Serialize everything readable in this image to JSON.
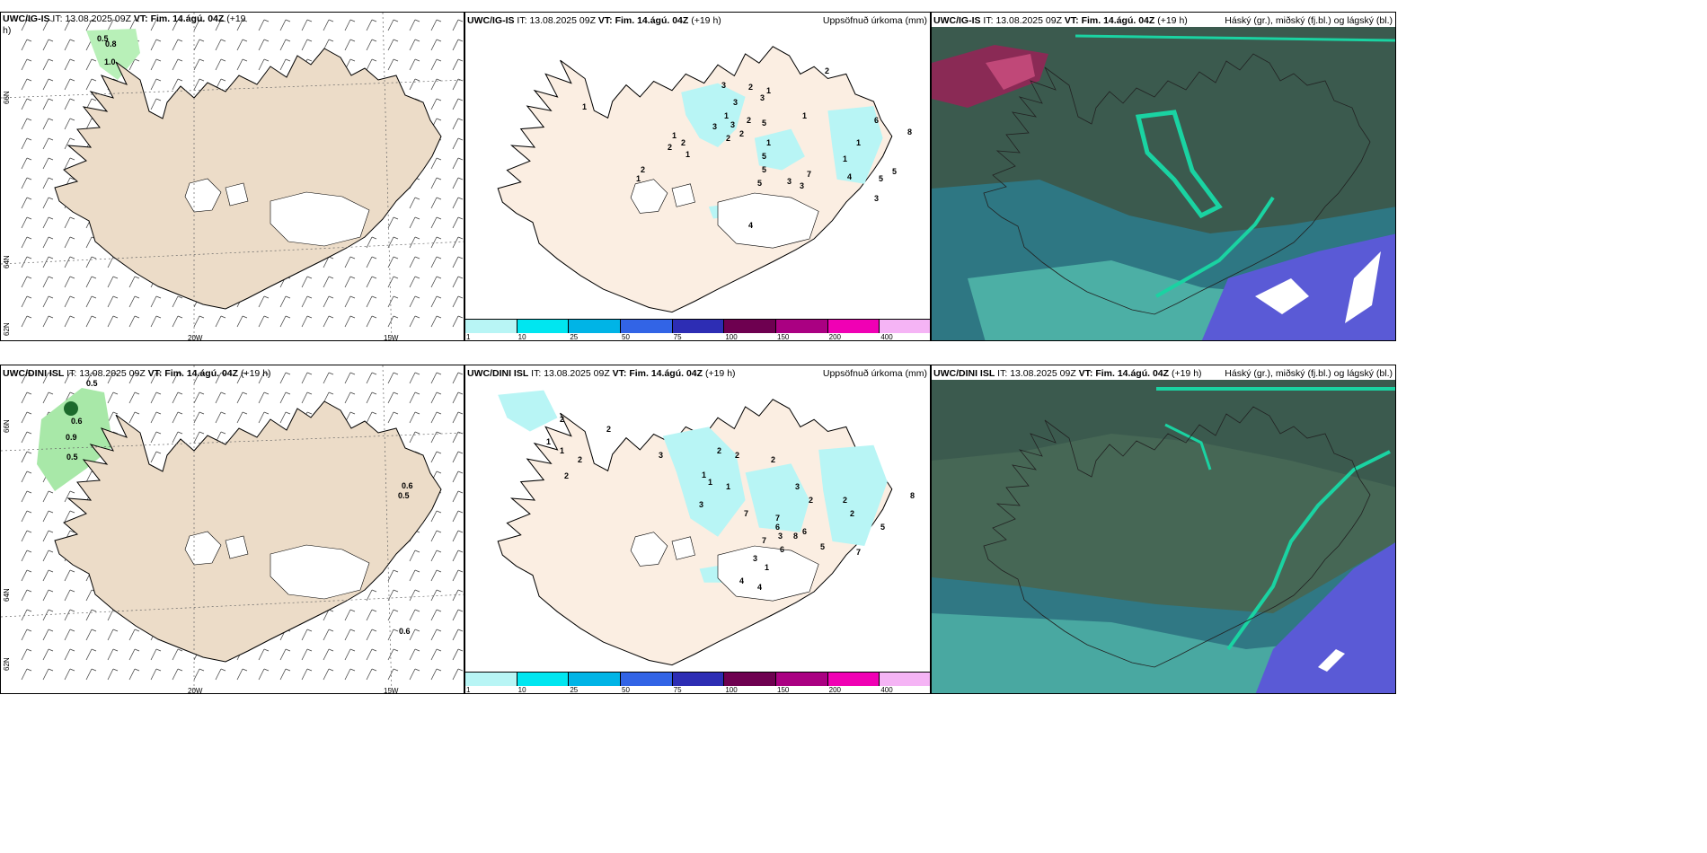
{
  "rows": [
    {
      "id": "top",
      "wind": {
        "model": "UWC/IG-IS",
        "it_label": "IT:",
        "it": "13.08.2025 09Z",
        "vt_label": "VT:",
        "vt": "Fim. 14.ágú. 04Z",
        "lead": "(+19",
        "lead2": "h)"
      },
      "precip": {
        "model": "UWC/IG-IS",
        "it_label": "IT:",
        "it": "13.08.2025 09Z",
        "vt_label": "VT:",
        "vt": "Fim. 14.ágú. 04Z",
        "lead": "(+19 h)",
        "field": "Uppsöfnuð úrkoma (mm)"
      },
      "cloud": {
        "model": "UWC/IG-IS",
        "it_label": "IT:",
        "it": "13.08.2025 09Z",
        "vt_label": "VT:",
        "vt": "Fim. 14.ágú. 04Z",
        "lead": "(+19 h)",
        "field": "Háský (gr.), miðský (fj.bl.) og lágský (bl.)"
      }
    },
    {
      "id": "bottom",
      "wind": {
        "model": "UWC/DINI ISL",
        "it_label": "IT:",
        "it": "13.08.2025 09Z",
        "vt_label": "VT:",
        "vt": "Fim. 14.ágú. 04Z",
        "lead": "(+19 h)",
        "lead2": ""
      },
      "precip": {
        "model": "UWC/DINI ISL",
        "it_label": "IT:",
        "it": "13.08.2025 09Z",
        "vt_label": "VT:",
        "vt": "Fim. 14.ágú. 04Z",
        "lead": "(+19 h)",
        "field": "Uppsöfnuð úrkoma (mm)"
      },
      "cloud": {
        "model": "UWC/DINI ISL",
        "it_label": "IT:",
        "it": "13.08.2025 09Z",
        "vt_label": "VT:",
        "vt": "Fim. 14.ágú. 04Z",
        "lead": "(+19 h)",
        "field": "Háský (gr.), miðský (fj.bl.) og lágský (bl.)"
      }
    }
  ],
  "grid_labels": {
    "lon_20w": "20W",
    "lon_15w": "15W",
    "lat_66n": "66N",
    "lat_64n": "64N",
    "lat_62n": "62N"
  },
  "colorbar": {
    "ticks": [
      "1",
      "10",
      "25",
      "50",
      "75",
      "100",
      "150",
      "200",
      "400"
    ],
    "colors": [
      "#b8f5f5",
      "#00e6f0",
      "#00b4e6",
      "#3264e6",
      "#2d2db4",
      "#6e0050",
      "#aa0082",
      "#f000b4",
      "#f5b4f5"
    ]
  },
  "wind_labels_top": [
    "0.5",
    "0.8",
    "1.0"
  ],
  "wind_labels_bottom": [
    "0.5",
    "0.6",
    "0.9",
    "0.5",
    "0.6",
    "0.5",
    "0.6"
  ],
  "precip_labels_top": [
    "1",
    "3",
    "3",
    "2",
    "3",
    "1",
    "1",
    "3",
    "3",
    "2",
    "5",
    "1",
    "2",
    "2",
    "1",
    "2",
    "2",
    "1",
    "5",
    "5",
    "1",
    "7",
    "5",
    "3",
    "3",
    "1",
    "1",
    "4",
    "6",
    "5",
    "5",
    "3",
    "2",
    "1",
    "2",
    "8",
    "4"
  ],
  "precip_labels_bottom": [
    "2",
    "2",
    "1",
    "1",
    "2",
    "2",
    "3",
    "2",
    "2",
    "1",
    "1",
    "1",
    "3",
    "2",
    "7",
    "7",
    "6",
    "8",
    "7",
    "6",
    "2",
    "2",
    "6",
    "5",
    "7",
    "5",
    "3",
    "1",
    "4",
    "4",
    "3",
    "3",
    "2",
    "8",
    "2"
  ],
  "colors": {
    "land": "#ecdcc8",
    "precip_land": "#fbeee2",
    "precip_light": "#b8f5f5",
    "wind_green": "#90e890",
    "cloud_dark": "#3b5a4e",
    "cloud_teal": "#1ad3a2",
    "cloud_blue": "#5a5ad6"
  }
}
